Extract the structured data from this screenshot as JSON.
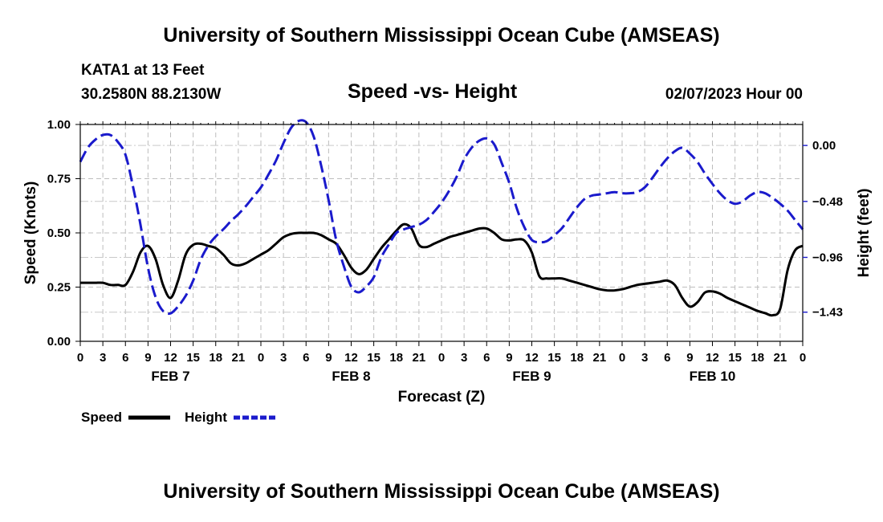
{
  "page": {
    "title_top": "University of Southern Mississippi Ocean Cube (AMSEAS)",
    "title_bottom": "University of Southern Mississippi Ocean Cube (AMSEAS)",
    "station_name": "KATA1 at 13 Feet",
    "station_coords": "30.2580N  88.2130W",
    "date_label": "02/07/2023 Hour 00"
  },
  "chart_data": {
    "type": "line",
    "title": "Speed -vs- Height",
    "xlabel": "Forecast (Z)",
    "ylabel": "Speed (Knots)",
    "y2label": "Height (feet)",
    "grid": true,
    "legend_position": "bottom-left",
    "x": [
      0,
      1,
      2,
      3,
      4,
      5,
      6,
      7,
      8,
      9,
      10,
      11,
      12,
      13,
      14,
      15,
      16,
      17,
      18,
      19,
      20,
      21,
      22,
      23,
      24,
      25,
      26,
      27,
      28,
      29,
      30,
      31,
      32,
      33,
      34,
      35,
      36,
      37,
      38,
      39,
      40,
      41,
      42,
      43,
      44,
      45,
      46,
      47,
      48,
      49,
      50,
      51,
      52,
      53,
      54,
      55,
      56,
      57,
      58,
      59,
      60,
      61,
      62,
      63,
      64,
      65,
      66,
      67,
      68,
      69,
      70,
      71,
      72,
      73,
      74,
      75,
      76,
      77,
      78,
      79,
      80,
      81,
      82,
      83,
      84,
      85,
      86,
      87,
      88,
      89,
      90,
      91,
      92,
      93,
      94,
      95,
      96
    ],
    "x_tick_labels": [
      "0",
      "3",
      "6",
      "9",
      "12",
      "15",
      "18",
      "21",
      "0",
      "3",
      "6",
      "9",
      "12",
      "15",
      "18",
      "21",
      "0",
      "3",
      "6",
      "9",
      "12",
      "15",
      "18",
      "21",
      "0",
      "3",
      "6",
      "9",
      "12",
      "15",
      "18",
      "21",
      "0"
    ],
    "x_tick_step": 3,
    "day_labels": [
      {
        "label": "FEB 7",
        "x": 12
      },
      {
        "label": "FEB 8",
        "x": 36
      },
      {
        "label": "FEB 9",
        "x": 60
      },
      {
        "label": "FEB 10",
        "x": 84
      }
    ],
    "ylim": [
      0,
      1
    ],
    "y_ticks": [
      0.0,
      0.25,
      0.5,
      0.75,
      1.0
    ],
    "y_tick_labels": [
      "0.00",
      "0.25",
      "0.50",
      "0.75",
      "1.00"
    ],
    "y2lim": [
      -1.68,
      0.18
    ],
    "y2_ticks": [
      0.0,
      -0.48,
      -0.96,
      -1.43
    ],
    "y2_tick_labels": [
      "0.00",
      "−0.48",
      "−0.96",
      "−1.43"
    ],
    "series": [
      {
        "name": "Speed",
        "axis": "left",
        "color": "#000000",
        "dash": "solid",
        "values": [
          0.27,
          0.27,
          0.27,
          0.27,
          0.26,
          0.26,
          0.26,
          0.32,
          0.41,
          0.44,
          0.38,
          0.26,
          0.2,
          0.28,
          0.4,
          0.445,
          0.45,
          0.44,
          0.43,
          0.4,
          0.36,
          0.35,
          0.36,
          0.38,
          0.4,
          0.42,
          0.45,
          0.48,
          0.495,
          0.5,
          0.5,
          0.5,
          0.49,
          0.47,
          0.45,
          0.4,
          0.34,
          0.31,
          0.33,
          0.38,
          0.43,
          0.47,
          0.51,
          0.54,
          0.52,
          0.445,
          0.435,
          0.45,
          0.465,
          0.48,
          0.49,
          0.5,
          0.51,
          0.52,
          0.52,
          0.5,
          0.47,
          0.465,
          0.47,
          0.465,
          0.41,
          0.3,
          0.29,
          0.29,
          0.29,
          0.28,
          0.27,
          0.26,
          0.25,
          0.24,
          0.235,
          0.235,
          0.24,
          0.25,
          0.26,
          0.265,
          0.27,
          0.275,
          0.28,
          0.26,
          0.2,
          0.16,
          0.18,
          0.225,
          0.23,
          0.22,
          0.2,
          0.185,
          0.17,
          0.155,
          0.14,
          0.13,
          0.12,
          0.15,
          0.33,
          0.42,
          0.44
        ]
      },
      {
        "name": "Height",
        "axis": "right",
        "color": "#1a1acc",
        "dash": "dashed",
        "values": [
          -0.14,
          -0.02,
          0.05,
          0.09,
          0.09,
          0.03,
          -0.08,
          -0.35,
          -0.68,
          -1.05,
          -1.3,
          -1.42,
          -1.44,
          -1.38,
          -1.29,
          -1.16,
          -0.98,
          -0.86,
          -0.78,
          -0.72,
          -0.65,
          -0.59,
          -0.52,
          -0.44,
          -0.36,
          -0.25,
          -0.13,
          0.02,
          0.15,
          0.21,
          0.2,
          0.08,
          -0.17,
          -0.47,
          -0.81,
          -1.03,
          -1.21,
          -1.26,
          -1.21,
          -1.13,
          -0.96,
          -0.85,
          -0.75,
          -0.72,
          -0.7,
          -0.68,
          -0.64,
          -0.57,
          -0.49,
          -0.39,
          -0.27,
          -0.12,
          -0.02,
          0.04,
          0.06,
          0.01,
          -0.15,
          -0.32,
          -0.54,
          -0.7,
          -0.81,
          -0.83,
          -0.82,
          -0.77,
          -0.71,
          -0.62,
          -0.53,
          -0.46,
          -0.43,
          -0.42,
          -0.41,
          -0.4,
          -0.41,
          -0.41,
          -0.4,
          -0.36,
          -0.28,
          -0.19,
          -0.11,
          -0.05,
          -0.02,
          -0.07,
          -0.14,
          -0.24,
          -0.33,
          -0.41,
          -0.47,
          -0.5,
          -0.48,
          -0.43,
          -0.4,
          -0.41,
          -0.45,
          -0.5,
          -0.56,
          -0.64,
          -0.72
        ]
      }
    ]
  }
}
